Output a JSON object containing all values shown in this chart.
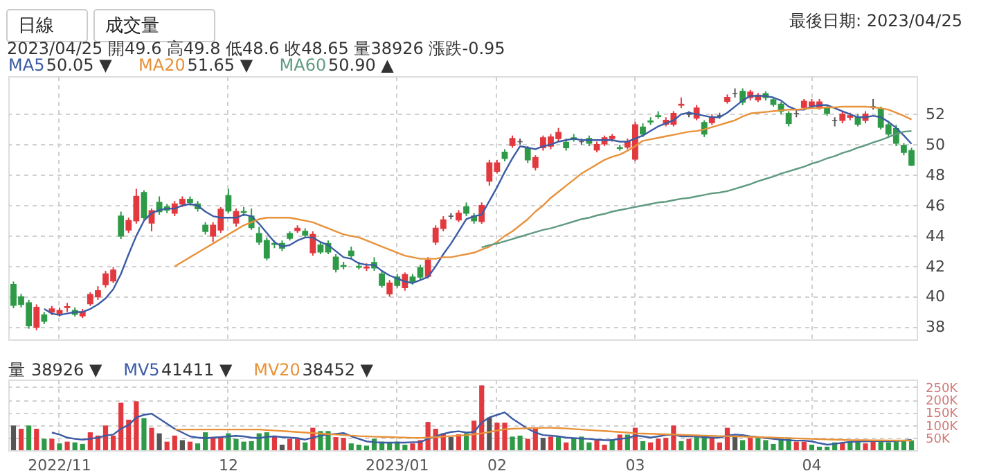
{
  "chart_data": [
    {
      "type": "candlestick",
      "legend": "top left",
      "grid": true,
      "tick_labels": "y",
      "annotations": [
        "日線",
        "成交量",
        "2023/04/25 開49.6 高49.8 低48.6 收48.65 量38926 漲跌-0.95",
        "最後日期: 2023/04/25",
        "50.05 ▼",
        "51.65 ▼",
        "50.90 ▲"
      ],
      "categories": [
        null,
        null,
        null,
        null,
        null,
        null,
        "2022/11",
        null,
        null,
        null,
        null,
        null,
        null,
        null,
        null,
        null,
        null,
        null,
        null,
        null,
        null,
        null,
        null,
        null,
        null,
        null,
        null,
        null,
        "12",
        null,
        null,
        null,
        null,
        null,
        null,
        null,
        null,
        null,
        null,
        null,
        null,
        null,
        null,
        null,
        null,
        null,
        null,
        null,
        null,
        null,
        "2023/01",
        null,
        null,
        null,
        null,
        null,
        null,
        null,
        null,
        null,
        null,
        null,
        null,
        "02",
        null,
        null,
        null,
        null,
        null,
        null,
        null,
        null,
        null,
        null,
        null,
        null,
        null,
        null,
        null,
        null,
        null,
        "03",
        null,
        null,
        null,
        null,
        null,
        null,
        null,
        null,
        null,
        null,
        null,
        null,
        null,
        null,
        null,
        null,
        null,
        null,
        null,
        null,
        null,
        null,
        "04",
        null,
        null,
        null,
        null,
        null,
        null,
        null,
        null,
        null,
        null,
        null,
        null,
        null
      ],
      "ylim": [
        37.2,
        54.5
      ],
      "yticks": [
        38,
        40,
        42,
        44,
        46,
        48,
        50,
        52
      ],
      "ohlc": [
        [
          40.8,
          41.0,
          39.25,
          39.45
        ],
        [
          40.0,
          40.2,
          39.3,
          39.5
        ],
        [
          39.6,
          39.8,
          37.9,
          38.1
        ],
        [
          38.0,
          39.5,
          37.8,
          39.3
        ],
        [
          38.8,
          39.0,
          38.2,
          38.4
        ],
        [
          39.0,
          39.4,
          38.8,
          39.2
        ],
        [
          38.9,
          39.3,
          38.7,
          39.1
        ],
        [
          39.3,
          39.6,
          39.0,
          39.35
        ],
        [
          39.1,
          39.3,
          38.7,
          38.85
        ],
        [
          38.75,
          39.2,
          38.6,
          39.0
        ],
        [
          39.55,
          40.3,
          39.4,
          40.15
        ],
        [
          40.0,
          40.7,
          39.8,
          40.4
        ],
        [
          40.8,
          41.7,
          40.6,
          41.5
        ],
        [
          41.05,
          41.95,
          40.9,
          41.75
        ],
        [
          45.3,
          45.6,
          43.8,
          44.0
        ],
        [
          44.4,
          45.2,
          44.2,
          45.0
        ],
        [
          45.0,
          47.1,
          44.8,
          46.6
        ],
        [
          46.85,
          47.0,
          45.0,
          45.2
        ],
        [
          44.85,
          45.8,
          44.3,
          45.65
        ],
        [
          46.2,
          46.6,
          45.4,
          45.6
        ],
        [
          45.9,
          46.1,
          45.5,
          45.7
        ],
        [
          45.5,
          46.3,
          45.3,
          46.1
        ],
        [
          46.1,
          46.6,
          45.9,
          46.4
        ],
        [
          46.4,
          46.6,
          46.0,
          46.2
        ],
        [
          46.1,
          46.3,
          45.6,
          45.8
        ],
        [
          44.7,
          44.9,
          44.1,
          44.3
        ],
        [
          44.0,
          44.9,
          43.6,
          44.7
        ],
        [
          44.4,
          45.9,
          44.2,
          45.75
        ],
        [
          46.65,
          47.1,
          45.5,
          45.65
        ],
        [
          44.85,
          45.8,
          44.6,
          45.6
        ],
        [
          45.6,
          45.9,
          45.3,
          45.55
        ],
        [
          45.3,
          45.8,
          44.4,
          44.55
        ],
        [
          44.15,
          44.6,
          43.4,
          43.6
        ],
        [
          43.7,
          43.9,
          42.4,
          42.55
        ],
        [
          43.5,
          43.7,
          43.2,
          43.45
        ],
        [
          43.5,
          43.7,
          43.0,
          43.2
        ],
        [
          44.15,
          44.3,
          43.7,
          43.85
        ],
        [
          44.35,
          44.7,
          44.2,
          44.5
        ],
        [
          44.3,
          44.5,
          43.9,
          44.05
        ],
        [
          42.9,
          44.3,
          42.7,
          44.1
        ],
        [
          43.4,
          43.6,
          42.8,
          42.95
        ],
        [
          43.5,
          43.7,
          42.8,
          42.95
        ],
        [
          42.6,
          42.8,
          41.6,
          41.8
        ],
        [
          42.05,
          42.3,
          41.8,
          42.0
        ],
        [
          43.0,
          43.3,
          42.5,
          42.7
        ],
        [
          42.0,
          42.3,
          41.8,
          41.95
        ],
        [
          41.9,
          42.2,
          41.7,
          41.95
        ],
        [
          42.25,
          42.6,
          41.7,
          41.9
        ],
        [
          41.5,
          41.7,
          40.6,
          40.75
        ],
        [
          40.2,
          41.1,
          40.0,
          40.9
        ],
        [
          41.3,
          41.5,
          40.6,
          40.75
        ],
        [
          40.6,
          41.6,
          40.4,
          41.45
        ],
        [
          41.3,
          41.5,
          40.8,
          41.0
        ],
        [
          41.9,
          42.1,
          41.1,
          41.3
        ],
        [
          41.35,
          42.6,
          41.2,
          42.4
        ],
        [
          43.6,
          44.7,
          43.4,
          44.5
        ],
        [
          44.5,
          45.3,
          44.3,
          45.05
        ],
        [
          45.3,
          45.5,
          45.1,
          45.3
        ],
        [
          45.05,
          45.7,
          44.9,
          45.5
        ],
        [
          45.9,
          46.2,
          45.3,
          45.5
        ],
        [
          45.3,
          45.5,
          44.8,
          45.0
        ],
        [
          44.95,
          46.2,
          44.8,
          46.0
        ],
        [
          47.6,
          49.0,
          47.3,
          48.8
        ],
        [
          48.25,
          49.0,
          48.1,
          48.8
        ],
        [
          49.5,
          49.7,
          48.9,
          49.1
        ],
        [
          49.95,
          50.6,
          49.8,
          50.4
        ],
        [
          50.2,
          50.4,
          50.0,
          50.2
        ],
        [
          49.75,
          49.9,
          48.8,
          49.0
        ],
        [
          48.5,
          49.3,
          48.3,
          49.15
        ],
        [
          49.8,
          50.6,
          49.6,
          50.45
        ],
        [
          49.9,
          50.7,
          49.7,
          50.5
        ],
        [
          50.4,
          51.1,
          50.2,
          50.8
        ],
        [
          50.15,
          50.4,
          49.6,
          49.8
        ],
        [
          50.45,
          50.7,
          50.2,
          50.35
        ],
        [
          50.2,
          50.4,
          50.0,
          50.2
        ],
        [
          50.4,
          50.6,
          49.9,
          50.1
        ],
        [
          49.65,
          50.2,
          49.5,
          50.0
        ],
        [
          50.05,
          50.6,
          49.9,
          50.45
        ],
        [
          50.4,
          50.7,
          50.2,
          50.55
        ],
        [
          49.8,
          50.0,
          49.6,
          49.75
        ],
        [
          49.85,
          50.4,
          49.7,
          50.2
        ],
        [
          49.05,
          51.5,
          48.9,
          51.3
        ],
        [
          51.15,
          51.4,
          50.5,
          50.7
        ],
        [
          51.55,
          51.8,
          51.3,
          51.5
        ],
        [
          51.9,
          52.2,
          51.7,
          51.85
        ],
        [
          51.35,
          51.8,
          51.2,
          51.6
        ],
        [
          51.35,
          52.2,
          51.2,
          52.05
        ],
        [
          52.6,
          53.1,
          52.4,
          52.65
        ],
        [
          52.0,
          52.2,
          51.8,
          52.0
        ],
        [
          51.75,
          52.6,
          51.6,
          52.4
        ],
        [
          51.45,
          51.6,
          50.5,
          50.7
        ],
        [
          51.45,
          52.0,
          51.3,
          51.8
        ],
        [
          51.9,
          52.1,
          51.7,
          51.9
        ],
        [
          52.85,
          53.3,
          52.7,
          53.1
        ],
        [
          53.35,
          53.7,
          53.1,
          53.35
        ],
        [
          53.5,
          53.7,
          52.6,
          52.8
        ],
        [
          53.1,
          53.6,
          52.9,
          53.45
        ],
        [
          52.95,
          53.4,
          52.8,
          53.25
        ],
        [
          53.35,
          53.5,
          52.9,
          53.1
        ],
        [
          52.95,
          53.1,
          52.5,
          52.65
        ],
        [
          52.65,
          52.8,
          52.0,
          52.2
        ],
        [
          52.05,
          52.2,
          51.2,
          51.4
        ],
        [
          52.05,
          52.3,
          51.8,
          52.05
        ],
        [
          52.45,
          53.0,
          52.3,
          52.85
        ],
        [
          52.55,
          53.0,
          52.4,
          52.8
        ],
        [
          52.45,
          53.0,
          52.3,
          52.8
        ],
        [
          52.45,
          52.6,
          51.9,
          52.05
        ],
        [
          51.6,
          51.8,
          51.2,
          51.6
        ],
        [
          51.6,
          52.2,
          51.4,
          52.0
        ],
        [
          51.8,
          52.1,
          51.6,
          51.9
        ],
        [
          51.8,
          52.0,
          51.2,
          51.35
        ],
        [
          51.6,
          52.2,
          51.4,
          52.0
        ],
        [
          52.5,
          53.0,
          52.3,
          52.5
        ],
        [
          52.35,
          52.5,
          51.0,
          51.15
        ],
        [
          51.3,
          51.5,
          50.5,
          50.7
        ],
        [
          51.05,
          51.3,
          49.9,
          50.1
        ],
        [
          49.95,
          50.1,
          49.3,
          49.5
        ],
        [
          49.6,
          49.8,
          48.6,
          48.65
        ]
      ],
      "colors": [
        "#2e9a47",
        "#2e9a47",
        "#2e9a47",
        "#e2393f",
        "#2e9a47",
        "#e2393f",
        "#e2393f",
        "#e2393f",
        "#2e9a47",
        "#e2393f",
        "#e2393f",
        "#e2393f",
        "#e2393f",
        "#e2393f",
        "#2e9a47",
        "#e2393f",
        "#e2393f",
        "#2e9a47",
        "#e2393f",
        "#2e9a47",
        "#2e9a47",
        "#e2393f",
        "#e2393f",
        "#2e9a47",
        "#2e9a47",
        "#2e9a47",
        "#e2393f",
        "#e2393f",
        "#2e9a47",
        "#e2393f",
        "#2e9a47",
        "#2e9a47",
        "#2e9a47",
        "#2e9a47",
        "#2e9a47",
        "#2e9a47",
        "#2e9a47",
        "#e2393f",
        "#2e9a47",
        "#e2393f",
        "#2e9a47",
        "#2e9a47",
        "#2e9a47",
        "#2e9a47",
        "#2e9a47",
        "#2e9a47",
        "#e2393f",
        "#2e9a47",
        "#2e9a47",
        "#e2393f",
        "#2e9a47",
        "#e2393f",
        "#2e9a47",
        "#2e9a47",
        "#e2393f",
        "#e2393f",
        "#e2393f",
        "#555555",
        "#e2393f",
        "#2e9a47",
        "#2e9a47",
        "#e2393f",
        "#e2393f",
        "#e2393f",
        "#2e9a47",
        "#e2393f",
        "#555555",
        "#2e9a47",
        "#e2393f",
        "#e2393f",
        "#e2393f",
        "#e2393f",
        "#2e9a47",
        "#2e9a47",
        "#555555",
        "#2e9a47",
        "#e2393f",
        "#e2393f",
        "#e2393f",
        "#2e9a47",
        "#e2393f",
        "#e2393f",
        "#2e9a47",
        "#2e9a47",
        "#2e9a47",
        "#e2393f",
        "#e2393f",
        "#e2393f",
        "#555555",
        "#e2393f",
        "#2e9a47",
        "#e2393f",
        "#555555",
        "#e2393f",
        "#555555",
        "#2e9a47",
        "#e2393f",
        "#e2393f",
        "#2e9a47",
        "#2e9a47",
        "#2e9a47",
        "#2e9a47",
        "#555555",
        "#e2393f",
        "#e2393f",
        "#e2393f",
        "#2e9a47",
        "#555555",
        "#e2393f",
        "#e2393f",
        "#2e9a47",
        "#e2393f",
        "#555555",
        "#2e9a47",
        "#2e9a47",
        "#2e9a47",
        "#2e9a47",
        "#2e9a47"
      ],
      "series": [
        {
          "name": "MA5",
          "type": "line",
          "color": "#3b5ba5",
          "values": [
            null,
            null,
            null,
            null,
            39.2,
            38.9,
            38.8,
            38.9,
            39.0,
            39.0,
            39.2,
            39.5,
            39.9,
            40.5,
            41.5,
            42.8,
            44.0,
            45.0,
            45.5,
            45.7,
            45.8,
            45.8,
            46.0,
            46.1,
            46.0,
            45.6,
            45.3,
            45.2,
            45.2,
            45.2,
            45.4,
            45.3,
            44.8,
            44.2,
            43.6,
            43.3,
            43.4,
            43.7,
            43.9,
            43.9,
            43.6,
            43.4,
            43.0,
            42.6,
            42.5,
            42.2,
            42.1,
            42.1,
            41.7,
            41.4,
            41.2,
            41.0,
            40.9,
            41.1,
            41.3,
            42.0,
            42.8,
            43.5,
            44.3,
            45.1,
            45.3,
            45.4,
            46.3,
            47.2,
            48.2,
            49.1,
            49.9,
            49.8,
            49.7,
            49.9,
            50.0,
            50.2,
            50.3,
            50.4,
            50.3,
            50.3,
            50.3,
            50.3,
            50.3,
            50.2,
            50.2,
            50.4,
            50.6,
            50.9,
            51.2,
            51.4,
            51.6,
            52.0,
            52.1,
            52.0,
            51.9,
            51.8,
            51.8,
            52.1,
            52.5,
            52.9,
            53.2,
            53.2,
            53.2,
            53.1,
            52.9,
            52.5,
            52.3,
            52.3,
            52.5,
            52.6,
            52.6,
            52.4,
            52.2,
            52.0,
            51.8,
            51.8,
            51.9,
            51.8,
            51.5,
            51.1,
            50.6,
            50.05
          ]
        },
        {
          "name": "MA20",
          "type": "line",
          "color": "#e8923a",
          "values": [
            null,
            null,
            null,
            null,
            null,
            null,
            null,
            null,
            null,
            null,
            null,
            null,
            null,
            null,
            null,
            null,
            null,
            null,
            null,
            null,
            null,
            42.0,
            42.3,
            42.6,
            42.9,
            43.2,
            43.5,
            43.8,
            44.1,
            44.4,
            44.7,
            44.9,
            45.1,
            45.2,
            45.2,
            45.2,
            45.2,
            45.1,
            45.0,
            44.9,
            44.7,
            44.5,
            44.3,
            44.1,
            44.0,
            43.9,
            43.7,
            43.5,
            43.3,
            43.1,
            42.9,
            42.7,
            42.6,
            42.5,
            42.5,
            42.5,
            42.6,
            42.6,
            42.7,
            42.8,
            42.9,
            43.1,
            43.3,
            43.6,
            44.0,
            44.3,
            44.7,
            45.1,
            45.6,
            46.0,
            46.5,
            46.9,
            47.3,
            47.7,
            48.1,
            48.4,
            48.7,
            49.0,
            49.2,
            49.35,
            49.6,
            49.9,
            50.25,
            50.35,
            50.45,
            50.55,
            50.65,
            50.75,
            50.85,
            50.9,
            51.0,
            51.15,
            51.3,
            51.45,
            51.6,
            51.85,
            52.05,
            52.1,
            52.15,
            52.2,
            52.25,
            52.3,
            52.3,
            52.35,
            52.4,
            52.4,
            52.45,
            52.45,
            52.5,
            52.5,
            52.5,
            52.5,
            52.45,
            52.4,
            52.3,
            52.1,
            51.9,
            51.65
          ]
        },
        {
          "name": "MA60",
          "type": "line",
          "color": "#5f9a80",
          "values": [
            null,
            null,
            null,
            null,
            null,
            null,
            null,
            null,
            null,
            null,
            null,
            null,
            null,
            null,
            null,
            null,
            null,
            null,
            null,
            null,
            null,
            null,
            null,
            null,
            null,
            null,
            null,
            null,
            null,
            null,
            null,
            null,
            null,
            null,
            null,
            null,
            null,
            null,
            null,
            null,
            null,
            null,
            null,
            null,
            null,
            null,
            null,
            null,
            null,
            null,
            null,
            null,
            null,
            null,
            null,
            null,
            null,
            null,
            null,
            null,
            null,
            43.25,
            43.4,
            43.5,
            43.65,
            43.8,
            43.95,
            44.1,
            44.25,
            44.4,
            44.5,
            44.65,
            44.8,
            44.95,
            45.1,
            45.2,
            45.35,
            45.45,
            45.6,
            45.7,
            45.8,
            45.9,
            46.0,
            46.1,
            46.2,
            46.25,
            46.35,
            46.45,
            46.5,
            46.6,
            46.7,
            46.8,
            46.85,
            46.95,
            47.1,
            47.25,
            47.4,
            47.6,
            47.75,
            47.9,
            48.1,
            48.25,
            48.4,
            48.55,
            48.75,
            48.9,
            49.1,
            49.25,
            49.45,
            49.6,
            49.8,
            49.95,
            50.15,
            50.3,
            50.5,
            50.7,
            50.85,
            50.9
          ]
        }
      ]
    },
    {
      "type": "bar",
      "legend": "top left",
      "grid": true,
      "annotations": [
        "38926 ▼",
        "41411 ▼",
        "38452 ▼"
      ],
      "categories": [
        null,
        null,
        null,
        null,
        null,
        null,
        "2022/11",
        null,
        null,
        null,
        null,
        null,
        null,
        null,
        null,
        null,
        null,
        null,
        null,
        null,
        null,
        null,
        null,
        null,
        null,
        null,
        null,
        null,
        "12",
        null,
        null,
        null,
        null,
        null,
        null,
        null,
        null,
        null,
        null,
        null,
        null,
        null,
        null,
        null,
        null,
        null,
        null,
        null,
        null,
        null,
        "2023/01",
        null,
        null,
        null,
        null,
        null,
        null,
        null,
        null,
        null,
        null,
        null,
        null,
        "02",
        null,
        null,
        null,
        null,
        null,
        null,
        null,
        null,
        null,
        null,
        null,
        null,
        null,
        null,
        null,
        null,
        null,
        "03",
        null,
        null,
        null,
        null,
        null,
        null,
        null,
        null,
        null,
        null,
        null,
        null,
        null,
        null,
        null,
        null,
        null,
        null,
        null,
        null,
        null,
        null,
        "04",
        null,
        null,
        null,
        null,
        null,
        null,
        null,
        null,
        null,
        null,
        null,
        null,
        null
      ],
      "ylim": [
        0,
        280000
      ],
      "yticks": [
        {
          "value": 50000,
          "label": "50K"
        },
        {
          "value": 100000,
          "label": "100K"
        },
        {
          "value": 150000,
          "label": "150K"
        },
        {
          "value": 200000,
          "label": "200K"
        },
        {
          "value": 250000,
          "label": "250K"
        }
      ],
      "series": [
        {
          "name": "量",
          "type": "bar",
          "values": [
            98000,
            85000,
            98000,
            85000,
            45000,
            45000,
            27000,
            34000,
            31000,
            25000,
            71000,
            58000,
            98000,
            58000,
            188000,
            121000,
            194000,
            127000,
            89000,
            67000,
            34000,
            58000,
            40000,
            34000,
            27000,
            71000,
            52000,
            54000,
            67000,
            45000,
            34000,
            36000,
            67000,
            71000,
            58000,
            22000,
            45000,
            45000,
            31000,
            89000,
            76000,
            76000,
            52000,
            49000,
            27000,
            22000,
            18000,
            45000,
            34000,
            31000,
            34000,
            22000,
            27000,
            40000,
            112000,
            85000,
            67000,
            52000,
            63000,
            67000,
            117000,
            257000,
            130000,
            109000,
            109000,
            54000,
            58000,
            45000,
            85000,
            49000,
            54000,
            52000,
            31000,
            49000,
            54000,
            31000,
            40000,
            22000,
            43000,
            62000,
            62000,
            89000,
            36000,
            31000,
            45000,
            49000,
            98000,
            36000,
            45000,
            52000,
            54000,
            49000,
            31000,
            89000,
            58000,
            40000,
            49000,
            49000,
            40000,
            25000,
            45000,
            49000,
            34000,
            34000,
            22000,
            14000,
            14000,
            31000,
            31000,
            34000,
            36000,
            27000,
            34000,
            36000,
            31000,
            34000,
            36000,
            38926
          ],
          "colors": [
            "#555555",
            "#e2393f",
            "#2e9a47",
            "#e2393f",
            "#2e9a47",
            "#e2393f",
            "#2e9a47",
            "#e2393f",
            "#2e9a47",
            "#2e9a47",
            "#e2393f",
            "#e2393f",
            "#e2393f",
            "#e2393f",
            "#e2393f",
            "#e2393f",
            "#e2393f",
            "#2e9a47",
            "#e2393f",
            "#555555",
            "#e2393f",
            "#e2393f",
            "#555555",
            "#e2393f",
            "#2e9a47",
            "#2e9a47",
            "#e2393f",
            "#e2393f",
            "#2e9a47",
            "#2e9a47",
            "#2e9a47",
            "#2e9a47",
            "#2e9a47",
            "#2e9a47",
            "#e2393f",
            "#555555",
            "#e2393f",
            "#e2393f",
            "#2e9a47",
            "#e2393f",
            "#2e9a47",
            "#2e9a47",
            "#e2393f",
            "#e2393f",
            "#2e9a47",
            "#2e9a47",
            "#2e9a47",
            "#2e9a47",
            "#2e9a47",
            "#2e9a47",
            "#2e9a47",
            "#2e9a47",
            "#e2393f",
            "#e2393f",
            "#e2393f",
            "#e2393f",
            "#e2393f",
            "#555555",
            "#e2393f",
            "#2e9a47",
            "#e2393f",
            "#e2393f",
            "#555555",
            "#e2393f",
            "#e2393f",
            "#2e9a47",
            "#2e9a47",
            "#e2393f",
            "#e2393f",
            "#555555",
            "#e2393f",
            "#2e9a47",
            "#e2393f",
            "#2e9a47",
            "#2e9a47",
            "#2e9a47",
            "#e2393f",
            "#e2393f",
            "#2e9a47",
            "#e2393f",
            "#2e9a47",
            "#e2393f",
            "#2e9a47",
            "#e2393f",
            "#e2393f",
            "#e2393f",
            "#e2393f",
            "#2e9a47",
            "#e2393f",
            "#2e9a47",
            "#2e9a47",
            "#e2393f",
            "#e2393f",
            "#e2393f",
            "#555555",
            "#2e9a47",
            "#e2393f",
            "#2e9a47",
            "#2e9a47",
            "#2e9a47",
            "#2e9a47",
            "#2e9a47",
            "#e2393f",
            "#e2393f",
            "#2e9a47",
            "#2e9a47",
            "#2e9a47",
            "#2e9a47",
            "#e2393f",
            "#2e9a47",
            "#2e9a47",
            "#e2393f",
            "#e2393f",
            "#2e9a47",
            "#2e9a47",
            "#2e9a47",
            "#2e9a47",
            "#2e9a47"
          ]
        },
        {
          "name": "MV5",
          "type": "line",
          "color": "#3b5ba5",
          "values": [
            null,
            null,
            null,
            null,
            null,
            70000,
            62000,
            50000,
            45000,
            42000,
            45000,
            50000,
            58000,
            62000,
            85000,
            100000,
            130000,
            140000,
            145000,
            125000,
            105000,
            85000,
            70000,
            55000,
            50000,
            48000,
            50000,
            52000,
            55000,
            57000,
            55000,
            50000,
            48000,
            53000,
            55000,
            52000,
            50000,
            48000,
            42000,
            50000,
            58000,
            62000,
            65000,
            68000,
            55000,
            45000,
            35000,
            32000,
            30000,
            30000,
            30000,
            30000,
            32000,
            32000,
            45000,
            55000,
            65000,
            72000,
            75000,
            70000,
            72000,
            110000,
            130000,
            140000,
            150000,
            125000,
            105000,
            85000,
            70000,
            60000,
            58000,
            55000,
            50000,
            48000,
            46000,
            45000,
            42000,
            40000,
            40000,
            45000,
            48000,
            58000,
            55000,
            50000,
            55000,
            60000,
            62000,
            55000,
            55000,
            55000,
            52000,
            50000,
            50000,
            58000,
            62000,
            60000,
            55000,
            52000,
            48000,
            45000,
            42000,
            40000,
            38000,
            38000,
            35000,
            28000,
            22000,
            25000,
            30000,
            33000,
            35000,
            35000,
            36000,
            36000,
            35000,
            36000,
            38000,
            41411
          ]
        },
        {
          "name": "MV20",
          "type": "line",
          "color": "#e8923a",
          "values": [
            null,
            null,
            null,
            null,
            null,
            null,
            null,
            null,
            null,
            null,
            null,
            null,
            null,
            null,
            null,
            null,
            null,
            null,
            null,
            null,
            null,
            82000,
            82000,
            82000,
            82000,
            82000,
            82000,
            82000,
            82000,
            82000,
            82000,
            82000,
            82000,
            80000,
            78000,
            76000,
            74000,
            72000,
            70000,
            68000,
            66000,
            64000,
            62000,
            60000,
            58000,
            56000,
            55000,
            54000,
            53000,
            52000,
            51000,
            50000,
            49000,
            49000,
            50000,
            52000,
            54000,
            56000,
            58000,
            60000,
            63000,
            67000,
            72000,
            78000,
            83000,
            85000,
            86000,
            87000,
            88000,
            89000,
            89000,
            88000,
            86000,
            84000,
            82000,
            80000,
            78000,
            76000,
            74000,
            72000,
            70000,
            67000,
            66000,
            65000,
            64000,
            63000,
            62000,
            61000,
            60000,
            59000,
            58000,
            57000,
            56000,
            56000,
            55000,
            54000,
            53000,
            52000,
            51000,
            50000,
            49000,
            48000,
            47000,
            46000,
            45000,
            44000,
            43000,
            42000,
            41000,
            40000,
            40000,
            40000,
            39000,
            39000,
            38800,
            38600,
            38500,
            38452
          ]
        }
      ]
    }
  ]
}
